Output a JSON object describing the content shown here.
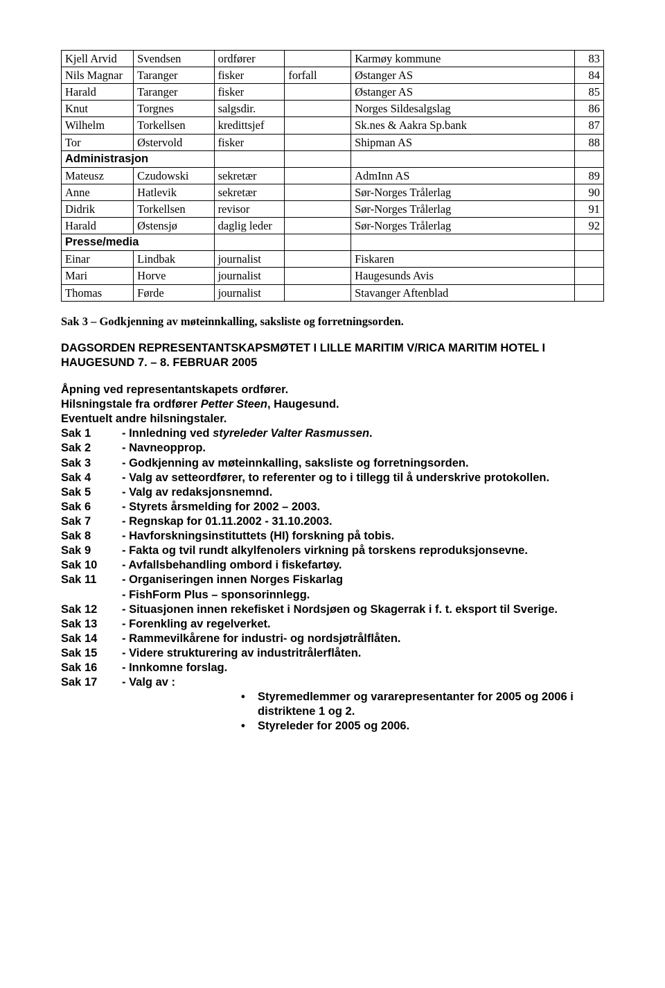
{
  "table": {
    "rows": [
      {
        "a": "Kjell Arvid",
        "b": "Svendsen",
        "c": "ordfører",
        "c2": "",
        "d": "Karmøy kommune",
        "e": "83"
      },
      {
        "a": "Nils Magnar",
        "b": "Taranger",
        "c": "fisker",
        "c2": "forfall",
        "d": "Østanger AS",
        "e": "84"
      },
      {
        "a": "Harald",
        "b": "Taranger",
        "c": "fisker",
        "c2": "",
        "d": "Østanger AS",
        "e": "85"
      },
      {
        "a": "Knut",
        "b": "Torgnes",
        "c": "salgsdir.",
        "c2": "",
        "d": "Norges Sildesalgslag",
        "e": "86"
      },
      {
        "a": "Wilhelm",
        "b": "Torkellsen",
        "c": "kredittsjef",
        "c2": "",
        "d": "Sk.nes & Aakra Sp.bank",
        "e": "87"
      },
      {
        "a": "Tor",
        "b": "Østervold",
        "c": "fisker",
        "c2": "",
        "d": "Shipman AS",
        "e": "88"
      },
      {
        "section": "Administrasjon"
      },
      {
        "a": "Mateusz",
        "b": "Czudowski",
        "c": "sekretær",
        "c2": "",
        "d": "AdmInn AS",
        "e": "89"
      },
      {
        "a": "Anne",
        "b": "Hatlevik",
        "c": "sekretær",
        "c2": "",
        "d": "Sør-Norges Trålerlag",
        "e": "90"
      },
      {
        "a": "Didrik",
        "b": "Torkellsen",
        "c": "revisor",
        "c2": "",
        "d": "Sør-Norges Trålerlag",
        "e": "91"
      },
      {
        "a": "Harald",
        "b": "Østensjø",
        "c": "daglig leder",
        "c2": "",
        "d": "Sør-Norges Trålerlag",
        "e": "92"
      },
      {
        "section": "Presse/media"
      },
      {
        "a": "Einar",
        "b": "Lindbak",
        "c": "journalist",
        "c2": "",
        "d": "Fiskaren",
        "e": ""
      },
      {
        "a": "Mari",
        "b": "Horve",
        "c": "journalist",
        "c2": "",
        "d": "Haugesunds Avis",
        "e": ""
      },
      {
        "a": "Thomas",
        "b": "Førde",
        "c": "journalist",
        "c2": "",
        "d": "Stavanger Aftenblad",
        "e": ""
      }
    ]
  },
  "sak3_heading": "Sak 3 – Godkjenning av møteinnkalling, saksliste og forretningsorden.",
  "dagsorden": "DAGSORDEN REPRESENTANTSKAPSMØTET I LILLE MARITIM V/RICA MARITIM HOTEL I HAUGESUND 7. – 8. FEBRUAR 2005",
  "opening": {
    "l1": "Åpning ved representantskapets ordfører.",
    "l2a": "Hilsningstale fra ordfører ",
    "l2b": "Petter Steen",
    "l2c": ", Haugesund.",
    "l3": "Eventuelt andre hilsningstaler."
  },
  "saks": [
    {
      "label": "Sak  1",
      "prefix": "-  Innledning ved ",
      "italic": "styreleder Valter Rasmussen",
      "suffix": "."
    },
    {
      "label": "Sak  2",
      "text": "-  Navneopprop."
    },
    {
      "label": "Sak  3",
      "text": "-  Godkjenning av møteinnkalling, saksliste og forretningsorden."
    },
    {
      "label": "Sak  4",
      "text": "-  Valg av setteordfører, to referenter og to i tillegg til å underskrive protokollen."
    },
    {
      "label": "Sak  5",
      "text": "-  Valg av redaksjonsnemnd."
    },
    {
      "label": "Sak  6",
      "text": "-  Styrets årsmelding for 2002 – 2003."
    },
    {
      "label": "Sak  7",
      "text": "-  Regnskap for 01.11.2002 - 31.10.2003."
    },
    {
      "label": "Sak  8",
      "text": "-  Havforskningsinstituttets (HI) forskning på tobis."
    },
    {
      "label": "Sak  9",
      "text": "-  Fakta og tvil rundt alkylfenolers virkning på torskens reproduksjonsevne."
    },
    {
      "label": "Sak 10",
      "text": "-  Avfallsbehandling ombord i fiskefartøy."
    },
    {
      "label": "Sak 11",
      "text": "-  Organiseringen innen Norges Fiskarlag",
      "extra": "-  FishForm Plus – sponsorinnlegg."
    },
    {
      "label": "Sak 12",
      "text": "-  Situasjonen innen rekefisket i Nordsjøen og Skagerrak i f. t. eksport til Sverige."
    },
    {
      "label": "Sak 13",
      "text": "-  Forenkling av regelverket."
    },
    {
      "label": "Sak 14",
      "text": "-  Rammevilkårene for industri- og nordsjøtrålflåten."
    },
    {
      "label": "Sak 15",
      "text": "-  Videre strukturering av industritrålerflåten."
    },
    {
      "label": "Sak 16",
      "text": "-  Innkomne forslag."
    },
    {
      "label": "Sak 17",
      "text": "-  Valg av :"
    }
  ],
  "bullets": [
    "Styremedlemmer og vararepresentanter for 2005 og 2006 i distriktene 1 og 2.",
    "Styreleder for 2005 og 2006."
  ]
}
